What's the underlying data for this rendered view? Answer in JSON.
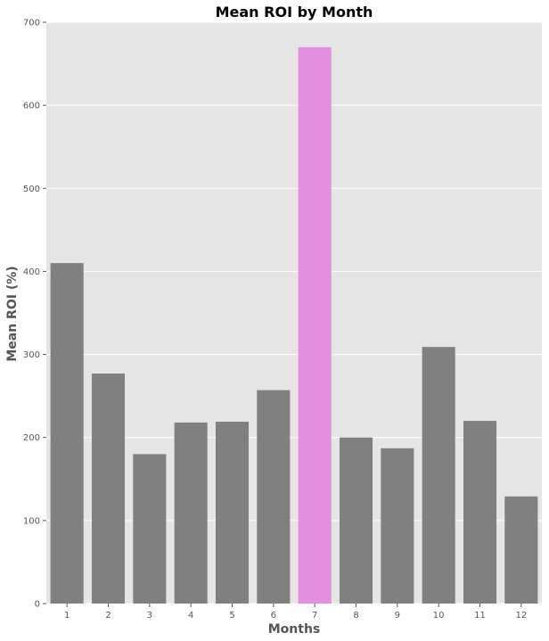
{
  "chart_data": {
    "type": "bar",
    "title": "Mean ROI by Month",
    "xlabel": "Months",
    "ylabel": "Mean ROI (%)",
    "categories": [
      "1",
      "2",
      "3",
      "4",
      "5",
      "6",
      "7",
      "8",
      "9",
      "10",
      "11",
      "12"
    ],
    "values": [
      410,
      277,
      180,
      218,
      219,
      257,
      670,
      200,
      187,
      309,
      220,
      129
    ],
    "ylim": [
      0,
      700
    ],
    "yticks": [
      0,
      100,
      200,
      300,
      400,
      500,
      600,
      700
    ],
    "highlight_index": 6,
    "grid": true,
    "colors": {
      "bar": "#808080",
      "highlight": "#e28fe2",
      "background": "#e5e5e5",
      "grid": "#ffffff"
    }
  }
}
